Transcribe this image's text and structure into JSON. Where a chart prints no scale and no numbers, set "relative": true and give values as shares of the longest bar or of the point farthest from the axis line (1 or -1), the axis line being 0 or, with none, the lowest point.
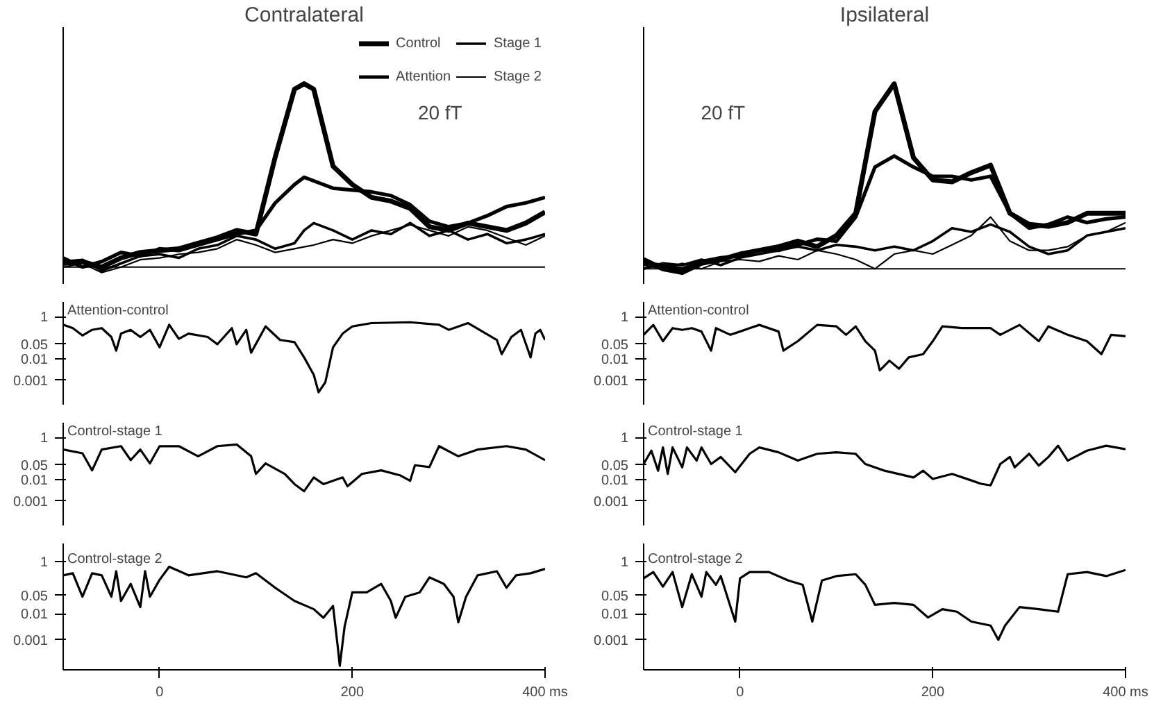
{
  "chart_data": [
    {
      "type": "line",
      "title": "Contralateral",
      "relative": true,
      "legend": "top",
      "tick_labels": false,
      "annotations": [
        "20 fT"
      ],
      "xlim": [
        -100,
        400
      ],
      "x": [
        -100,
        -80,
        -60,
        -40,
        -20,
        0,
        20,
        40,
        60,
        80,
        100,
        120,
        140,
        150,
        160,
        180,
        200,
        220,
        240,
        260,
        280,
        300,
        320,
        340,
        360,
        380,
        400
      ],
      "series": [
        {
          "name": "Control",
          "color": "#000000",
          "values": [
            0.02,
            0.03,
            0.0,
            0.05,
            0.08,
            0.09,
            0.1,
            0.13,
            0.16,
            0.2,
            0.18,
            0.6,
            0.97,
            1.0,
            0.97,
            0.55,
            0.45,
            0.38,
            0.36,
            0.32,
            0.22,
            0.2,
            0.24,
            0.22,
            0.2,
            0.24,
            0.3
          ]
        },
        {
          "name": "Attention",
          "color": "#000000",
          "values": [
            0.05,
            0.0,
            0.03,
            0.08,
            0.06,
            0.1,
            0.09,
            0.12,
            0.15,
            0.18,
            0.2,
            0.35,
            0.45,
            0.49,
            0.47,
            0.43,
            0.42,
            0.41,
            0.39,
            0.34,
            0.25,
            0.22,
            0.24,
            0.28,
            0.33,
            0.35,
            0.38
          ]
        },
        {
          "name": "Stage 1",
          "color": "#000000",
          "values": [
            0.03,
            0.04,
            -0.02,
            0.02,
            0.06,
            0.07,
            0.05,
            0.1,
            0.12,
            0.17,
            0.15,
            0.1,
            0.13,
            0.2,
            0.24,
            0.2,
            0.15,
            0.2,
            0.18,
            0.24,
            0.17,
            0.2,
            0.15,
            0.18,
            0.13,
            0.15,
            0.18
          ]
        },
        {
          "name": "Stage 2",
          "color": "#000000",
          "values": [
            0.0,
            0.02,
            -0.03,
            0.0,
            0.04,
            0.05,
            0.07,
            0.08,
            0.1,
            0.15,
            0.12,
            0.08,
            0.1,
            0.11,
            0.12,
            0.15,
            0.13,
            0.17,
            0.2,
            0.23,
            0.2,
            0.17,
            0.22,
            0.2,
            0.16,
            0.12,
            0.17
          ]
        }
      ]
    },
    {
      "type": "line",
      "title": "Attention-control",
      "log": "y",
      "tick_labels": "y",
      "xlim": [
        -100,
        400
      ],
      "ylim": [
        7e-05,
        5
      ],
      "yticks": [
        1,
        0.05,
        0.01,
        0.001
      ],
      "x": [
        -100,
        -90,
        -80,
        -70,
        -60,
        -50,
        -45,
        -40,
        -30,
        -20,
        -10,
        0,
        10,
        20,
        30,
        50,
        60,
        75,
        80,
        90,
        95,
        110,
        125,
        140,
        150,
        160,
        165,
        172,
        180,
        190,
        200,
        220,
        260,
        290,
        300,
        320,
        350,
        355,
        365,
        375,
        385,
        390,
        395,
        400
      ],
      "series": [
        {
          "color": "#000000",
          "values": [
            0.42,
            0.29,
            0.13,
            0.24,
            0.29,
            0.11,
            0.025,
            0.16,
            0.24,
            0.11,
            0.24,
            0.036,
            0.42,
            0.09,
            0.16,
            0.11,
            0.05,
            0.29,
            0.05,
            0.24,
            0.02,
            0.35,
            0.08,
            0.063,
            0.012,
            0.0018,
            0.00027,
            0.0008,
            0.036,
            0.16,
            0.35,
            0.5,
            0.55,
            0.42,
            0.24,
            0.5,
            0.08,
            0.017,
            0.11,
            0.24,
            0.012,
            0.16,
            0.24,
            0.08
          ]
        }
      ]
    },
    {
      "type": "line",
      "title": "Control-stage 1",
      "log": "y",
      "tick_labels": "y",
      "xlim": [
        -100,
        400
      ],
      "ylim": [
        7e-05,
        5
      ],
      "yticks": [
        1,
        0.05,
        0.01,
        0.001
      ],
      "x": [
        -100,
        -80,
        -70,
        -60,
        -40,
        -30,
        -20,
        -10,
        0,
        20,
        40,
        60,
        80,
        95,
        100,
        110,
        130,
        140,
        150,
        160,
        170,
        190,
        195,
        210,
        230,
        250,
        260,
        265,
        280,
        290,
        310,
        330,
        360,
        380,
        400
      ],
      "series": [
        {
          "color": "#000000",
          "values": [
            0.27,
            0.18,
            0.028,
            0.27,
            0.39,
            0.085,
            0.27,
            0.06,
            0.39,
            0.39,
            0.13,
            0.39,
            0.47,
            0.13,
            0.019,
            0.06,
            0.019,
            0.0063,
            0.0029,
            0.013,
            0.0063,
            0.013,
            0.005,
            0.019,
            0.028,
            0.016,
            0.009,
            0.049,
            0.04,
            0.39,
            0.13,
            0.27,
            0.39,
            0.27,
            0.085
          ]
        }
      ]
    },
    {
      "type": "line",
      "title": "Control-stage 2",
      "log": "y",
      "xlim": [
        -100,
        400
      ],
      "ylim": [
        7e-05,
        5
      ],
      "yticks": [
        1,
        0.05,
        0.01,
        0.001
      ],
      "xticks": [
        0,
        200,
        {
          "value": 400,
          "label": "400 ms"
        }
      ],
      "x": [
        -100,
        -90,
        -80,
        -70,
        -60,
        -50,
        -45,
        -40,
        -30,
        -20,
        -15,
        -10,
        0,
        10,
        30,
        60,
        90,
        100,
        120,
        140,
        160,
        170,
        180,
        185,
        187,
        192,
        200,
        215,
        230,
        240,
        245,
        255,
        270,
        280,
        295,
        305,
        310,
        318,
        330,
        350,
        360,
        370,
        385,
        400
      ],
      "series": [
        {
          "color": "#000000",
          "values": [
            0.3,
            0.36,
            0.045,
            0.36,
            0.3,
            0.045,
            0.43,
            0.031,
            0.14,
            0.018,
            0.43,
            0.045,
            0.2,
            0.64,
            0.3,
            0.43,
            0.25,
            0.36,
            0.1,
            0.031,
            0.015,
            0.007,
            0.02,
            0.0005,
            0.0001,
            0.0032,
            0.066,
            0.066,
            0.14,
            0.031,
            0.007,
            0.045,
            0.066,
            0.25,
            0.14,
            0.045,
            0.0047,
            0.045,
            0.3,
            0.43,
            0.1,
            0.3,
            0.36,
            0.53
          ]
        }
      ]
    },
    {
      "type": "line",
      "title": "Ipsilateral",
      "relative": true,
      "tick_labels": false,
      "annotations": [
        "20 fT"
      ],
      "xlim": [
        -100,
        400
      ],
      "x": [
        -100,
        -80,
        -60,
        -40,
        -20,
        0,
        20,
        40,
        60,
        80,
        100,
        120,
        140,
        160,
        180,
        200,
        220,
        240,
        260,
        280,
        300,
        320,
        340,
        360,
        380,
        400
      ],
      "series": [
        {
          "color": "#000000",
          "values": [
            0.05,
            0.0,
            -0.02,
            0.03,
            0.05,
            0.08,
            0.1,
            0.12,
            0.15,
            0.12,
            0.18,
            0.3,
            0.85,
            1.0,
            0.6,
            0.48,
            0.47,
            0.52,
            0.56,
            0.3,
            0.24,
            0.23,
            0.25,
            0.3,
            0.3,
            0.3
          ]
        },
        {
          "color": "#000000",
          "values": [
            0.03,
            0.02,
            0.0,
            0.04,
            0.06,
            0.07,
            0.1,
            0.1,
            0.13,
            0.16,
            0.15,
            0.28,
            0.55,
            0.61,
            0.55,
            0.5,
            0.5,
            0.48,
            0.5,
            0.3,
            0.22,
            0.24,
            0.28,
            0.25,
            0.27,
            0.28
          ]
        },
        {
          "color": "#000000",
          "values": [
            0.0,
            0.03,
            0.02,
            0.05,
            0.02,
            0.06,
            0.08,
            0.1,
            0.12,
            0.1,
            0.13,
            0.12,
            0.1,
            0.12,
            0.1,
            0.15,
            0.22,
            0.2,
            0.24,
            0.2,
            0.12,
            0.08,
            0.1,
            0.18,
            0.2,
            0.22
          ]
        },
        {
          "color": "#000000",
          "values": [
            0.02,
            0.0,
            0.03,
            0.0,
            0.04,
            0.05,
            0.04,
            0.07,
            0.05,
            0.1,
            0.08,
            0.05,
            0.0,
            0.08,
            0.1,
            0.08,
            0.13,
            0.18,
            0.28,
            0.15,
            0.1,
            0.1,
            0.12,
            0.18,
            0.2,
            0.25
          ]
        }
      ]
    },
    {
      "type": "line",
      "title": "Attention-control",
      "log": "y",
      "tick_labels": "y",
      "xlim": [
        -100,
        400
      ],
      "ylim": [
        7e-05,
        5
      ],
      "yticks": [
        1,
        0.05,
        0.01,
        0.001
      ],
      "x": [
        -100,
        -90,
        -80,
        -70,
        -60,
        -50,
        -40,
        -30,
        -25,
        -10,
        0,
        10,
        20,
        40,
        45,
        60,
        80,
        100,
        110,
        120,
        130,
        140,
        145,
        155,
        165,
        175,
        190,
        200,
        210,
        230,
        260,
        270,
        290,
        310,
        320,
        340,
        360,
        375,
        385,
        400
      ],
      "series": [
        {
          "color": "#000000",
          "values": [
            0.14,
            0.41,
            0.07,
            0.29,
            0.24,
            0.29,
            0.2,
            0.025,
            0.29,
            0.14,
            0.2,
            0.29,
            0.41,
            0.2,
            0.025,
            0.07,
            0.41,
            0.35,
            0.14,
            0.35,
            0.07,
            0.025,
            0.0029,
            0.0084,
            0.0035,
            0.012,
            0.017,
            0.07,
            0.35,
            0.29,
            0.29,
            0.14,
            0.41,
            0.07,
            0.35,
            0.14,
            0.07,
            0.017,
            0.14,
            0.12
          ]
        }
      ]
    },
    {
      "type": "line",
      "title": "Control-stage 1",
      "log": "y",
      "tick_labels": "y",
      "xlim": [
        -100,
        400
      ],
      "ylim": [
        7e-05,
        5
      ],
      "yticks": [
        1,
        0.05,
        0.01,
        0.001
      ],
      "x": [
        -100,
        -92,
        -85,
        -80,
        -75,
        -70,
        -60,
        -55,
        -45,
        -40,
        -30,
        -20,
        -5,
        10,
        20,
        40,
        60,
        80,
        100,
        120,
        130,
        150,
        180,
        190,
        200,
        220,
        240,
        250,
        260,
        270,
        280,
        285,
        300,
        310,
        320,
        330,
        340,
        360,
        380,
        400
      ],
      "series": [
        {
          "color": "#000000",
          "values": [
            0.056,
            0.24,
            0.027,
            0.34,
            0.019,
            0.34,
            0.039,
            0.34,
            0.081,
            0.34,
            0.056,
            0.12,
            0.023,
            0.17,
            0.34,
            0.2,
            0.081,
            0.17,
            0.2,
            0.17,
            0.056,
            0.027,
            0.013,
            0.027,
            0.011,
            0.019,
            0.0094,
            0.0065,
            0.0055,
            0.056,
            0.12,
            0.039,
            0.17,
            0.047,
            0.12,
            0.41,
            0.081,
            0.24,
            0.41,
            0.28
          ]
        }
      ]
    },
    {
      "type": "line",
      "title": "Control-stage 2",
      "log": "y",
      "xlim": [
        -100,
        400
      ],
      "ylim": [
        7e-05,
        5
      ],
      "yticks": [
        1,
        0.05,
        0.01,
        0.001
      ],
      "xticks": [
        0,
        200,
        {
          "value": 400,
          "label": "400 ms"
        }
      ],
      "x": [
        -100,
        -90,
        -80,
        -70,
        -60,
        -50,
        -40,
        -35,
        -25,
        -20,
        -5,
        0,
        10,
        30,
        50,
        65,
        75,
        85,
        100,
        120,
        130,
        140,
        160,
        180,
        195,
        210,
        225,
        240,
        260,
        268,
        275,
        290,
        310,
        330,
        340,
        360,
        380,
        400
      ],
      "series": [
        {
          "color": "#000000",
          "values": [
            0.23,
            0.4,
            0.11,
            0.4,
            0.018,
            0.33,
            0.045,
            0.4,
            0.13,
            0.28,
            0.005,
            0.23,
            0.4,
            0.4,
            0.19,
            0.13,
            0.005,
            0.19,
            0.28,
            0.33,
            0.13,
            0.022,
            0.026,
            0.022,
            0.0072,
            0.015,
            0.012,
            0.005,
            0.0035,
            0.001,
            0.0035,
            0.018,
            0.015,
            0.012,
            0.33,
            0.4,
            0.28,
            0.48
          ]
        }
      ]
    }
  ]
}
